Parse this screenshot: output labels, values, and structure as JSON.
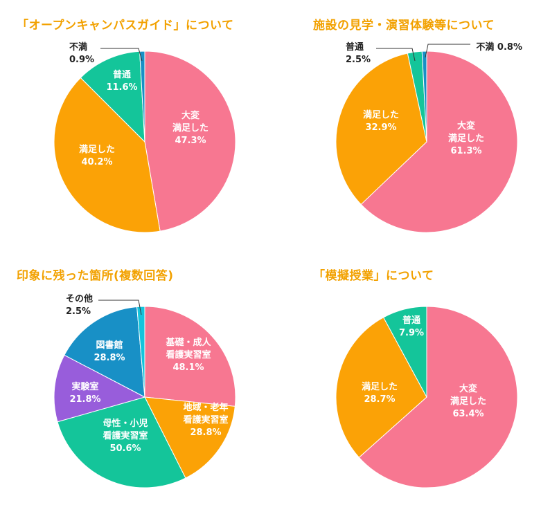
{
  "chart_data": [
    {
      "type": "pie",
      "title": "「オープンキャンパスガイド」について",
      "slices": [
        {
          "lines": [
            "大変",
            "満足した"
          ],
          "percent_label": "47.3%",
          "value": 47.3,
          "color": "#f77791"
        },
        {
          "lines": [
            "満足した"
          ],
          "percent_label": "40.2%",
          "value": 40.2,
          "color": "#fba206"
        },
        {
          "lines": [
            "普通"
          ],
          "percent_label": "11.6%",
          "value": 11.6,
          "color": "#14c59a"
        },
        {
          "lines": [
            "不満"
          ],
          "percent_label": "0.9%",
          "value": 0.9,
          "color": "#1890c6"
        }
      ]
    },
    {
      "type": "pie",
      "title": "施設の見学・演習体験等について",
      "slices": [
        {
          "lines": [
            "大変",
            "満足した"
          ],
          "percent_label": "61.3%",
          "value": 61.3,
          "color": "#f77791"
        },
        {
          "lines": [
            "満足した"
          ],
          "percent_label": "32.9%",
          "value": 32.9,
          "color": "#fba206"
        },
        {
          "lines": [
            "普通"
          ],
          "percent_label": "2.5%",
          "value": 2.5,
          "color": "#14c59a"
        },
        {
          "lines": [
            "不満"
          ],
          "percent_label": "0.8%",
          "value": 0.8,
          "color": "#1890c6"
        }
      ]
    },
    {
      "type": "pie",
      "title": "印象に残った箇所(複数回答)",
      "slices": [
        {
          "lines": [
            "基礎・成人",
            "看護実習室"
          ],
          "percent_label": "48.1%",
          "value": 48.1,
          "color": "#f77791"
        },
        {
          "lines": [
            "地域・老年",
            "看護実習室"
          ],
          "percent_label": "28.8%",
          "value": 28.8,
          "color": "#fba206"
        },
        {
          "lines": [
            "母性・小児",
            "看護実習室"
          ],
          "percent_label": "50.6%",
          "value": 50.6,
          "color": "#14c59a"
        },
        {
          "lines": [
            "実験室"
          ],
          "percent_label": "21.8%",
          "value": 21.8,
          "color": "#985ddb"
        },
        {
          "lines": [
            "図書館"
          ],
          "percent_label": "28.8%",
          "value": 28.8,
          "color": "#1890c6"
        },
        {
          "lines": [
            "その他"
          ],
          "percent_label": "2.5%",
          "value": 2.5,
          "color": "#14c4dc"
        }
      ]
    },
    {
      "type": "pie",
      "title": "「模擬授業」について",
      "slices": [
        {
          "lines": [
            "大変",
            "満足した"
          ],
          "percent_label": "63.4%",
          "value": 63.4,
          "color": "#f77791"
        },
        {
          "lines": [
            "満足した"
          ],
          "percent_label": "28.7%",
          "value": 28.7,
          "color": "#fba206"
        },
        {
          "lines": [
            "普通"
          ],
          "percent_label": "7.9%",
          "value": 7.9,
          "color": "#14c59a"
        }
      ]
    }
  ]
}
